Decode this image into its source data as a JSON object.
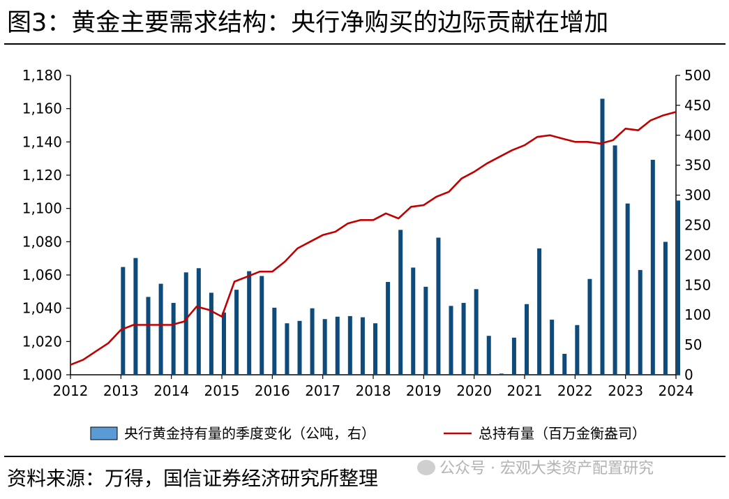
{
  "header": {
    "title": "图3：黄金主要需求结构：央行净购买的边际贡献在增加"
  },
  "footer": {
    "source": "资料来源：万得，国信证券经济研究所整理",
    "watermark": "公众号 · 宏观大类资产配置研究",
    "watermark_icon": "wechat-icon"
  },
  "colors": {
    "bar": "#0e4a7a",
    "bar_legend": "#5b9bd5",
    "line": "#c00000"
  },
  "chart_data": {
    "type": "bar+line",
    "x_ticks": [
      "2012",
      "2013",
      "2014",
      "2015",
      "2016",
      "2017",
      "2018",
      "2019",
      "2020",
      "2021",
      "2022",
      "2023",
      "2024"
    ],
    "xlim": [
      2012,
      2024
    ],
    "y_left": {
      "lim": [
        1000,
        1180
      ],
      "ticks": [
        "1,000",
        "1,020",
        "1,040",
        "1,060",
        "1,080",
        "1,100",
        "1,120",
        "1,140",
        "1,160",
        "1,180"
      ]
    },
    "y_right": {
      "lim": [
        0,
        500
      ],
      "ticks": [
        "0",
        "50",
        "100",
        "150",
        "200",
        "250",
        "300",
        "350",
        "400",
        "450",
        "500"
      ]
    },
    "series": [
      {
        "name": "央行黄金持有量的季度变化（公吨，右）",
        "type": "bar",
        "axis": "right",
        "x": [
          2013.0,
          2013.25,
          2013.5,
          2013.75,
          2014.0,
          2014.25,
          2014.5,
          2014.75,
          2015.0,
          2015.25,
          2015.5,
          2015.75,
          2016.0,
          2016.25,
          2016.5,
          2016.75,
          2017.0,
          2017.25,
          2017.5,
          2017.75,
          2018.0,
          2018.25,
          2018.5,
          2018.75,
          2019.0,
          2019.25,
          2019.5,
          2019.75,
          2020.0,
          2020.25,
          2020.5,
          2020.75,
          2021.0,
          2021.25,
          2021.5,
          2021.75,
          2022.0,
          2022.25,
          2022.5,
          2022.75,
          2023.0,
          2023.25,
          2023.5,
          2023.75,
          2024.0
        ],
        "values": [
          180,
          195,
          130,
          152,
          120,
          171,
          178,
          137,
          104,
          142,
          173,
          165,
          112,
          86,
          90,
          111,
          93,
          97,
          98,
          96,
          86,
          155,
          242,
          179,
          147,
          229,
          115,
          120,
          143,
          65,
          2,
          62,
          118,
          211,
          92,
          35,
          83,
          160,
          461,
          383,
          286,
          175,
          359,
          222,
          291
        ]
      },
      {
        "name": "总持有量（百万金衡盎司）",
        "type": "line",
        "axis": "left",
        "x": [
          2012.0,
          2012.25,
          2012.5,
          2012.75,
          2013.0,
          2013.25,
          2013.5,
          2013.75,
          2014.0,
          2014.25,
          2014.5,
          2014.75,
          2015.0,
          2015.25,
          2015.5,
          2015.75,
          2016.0,
          2016.25,
          2016.5,
          2016.75,
          2017.0,
          2017.25,
          2017.5,
          2017.75,
          2018.0,
          2018.25,
          2018.5,
          2018.75,
          2019.0,
          2019.25,
          2019.5,
          2019.75,
          2020.0,
          2020.25,
          2020.5,
          2020.75,
          2021.0,
          2021.25,
          2021.5,
          2021.75,
          2022.0,
          2022.25,
          2022.5,
          2022.75,
          2023.0,
          2023.25,
          2023.5,
          2023.75,
          2024.0
        ],
        "values": [
          1006,
          1009,
          1014,
          1019,
          1027,
          1030,
          1030,
          1030,
          1030,
          1032,
          1041,
          1039,
          1035,
          1056,
          1059,
          1062,
          1062,
          1068,
          1076,
          1080,
          1084,
          1086,
          1091,
          1093,
          1093,
          1097,
          1094,
          1101,
          1102,
          1107,
          1110,
          1118,
          1122,
          1127,
          1131,
          1135,
          1138,
          1143,
          1144,
          1142,
          1140,
          1140,
          1139,
          1141,
          1148,
          1147,
          1153,
          1156,
          1158
        ]
      }
    ]
  }
}
